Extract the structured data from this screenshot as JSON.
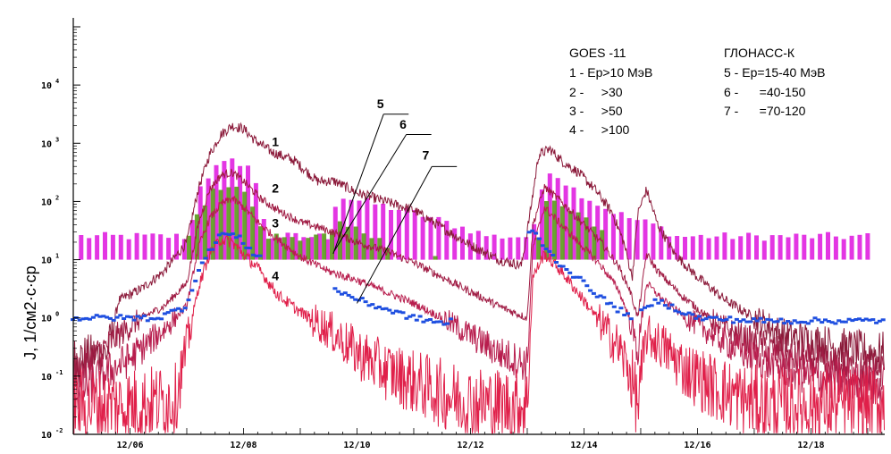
{
  "chart_data": {
    "type": "line",
    "title": "",
    "ylabel": "J, 1/см2·с·ср",
    "xlabel": "",
    "yscale": "log",
    "ylim_exp": [
      -2,
      5
    ],
    "xlim": [
      5.0,
      19.3
    ],
    "y_tick_exponents": [
      -2,
      -1,
      0,
      1,
      2,
      3,
      4
    ],
    "y_tick_base": "10",
    "x_ticks": [
      {
        "value": 6,
        "label": "12/06"
      },
      {
        "value": 8,
        "label": "12/08"
      },
      {
        "value": 10,
        "label": "12/10"
      },
      {
        "value": 12,
        "label": "12/12"
      },
      {
        "value": 14,
        "label": "12/14"
      },
      {
        "value": 16,
        "label": "12/16"
      },
      {
        "value": 18,
        "label": "12/18"
      }
    ],
    "legend": {
      "goes_title": "GOES -11",
      "goes_entries": [
        "1 - Ep>10 МэВ",
        "2 -     >30",
        "3 -     >50",
        "4 -     >100"
      ],
      "glonass_title": "ГЛОНАСС-К",
      "glonass_entries": [
        "5 - Ep=15-40 МэВ",
        "6 -      =40-150",
        "7 -      =70-120"
      ]
    },
    "curve_labels": [
      {
        "text": "1",
        "x": 8.5,
        "y": 2.95
      },
      {
        "text": "2",
        "x": 8.5,
        "y": 2.15
      },
      {
        "text": "3",
        "x": 8.5,
        "y": 1.55
      },
      {
        "text": "4",
        "x": 8.5,
        "y": 0.65
      },
      {
        "text": "5",
        "x": 10.35,
        "y": 3.6
      },
      {
        "text": "6",
        "x": 10.75,
        "y": 3.25
      },
      {
        "text": "7",
        "x": 11.15,
        "y": 2.72
      }
    ],
    "callouts": [
      {
        "label": "5",
        "from": [
          10.5,
          3.5
        ],
        "to": [
          9.58,
          1.1
        ]
      },
      {
        "label": "6",
        "from": [
          10.9,
          3.15
        ],
        "to": [
          9.6,
          1.15
        ]
      },
      {
        "label": "7",
        "from": [
          11.35,
          2.6
        ],
        "to": [
          10.0,
          0.25
        ]
      }
    ],
    "series": [
      {
        "name": "1",
        "color": "#8b1a3a",
        "noise": 0.25,
        "floor": -0.3,
        "x": [
          5.0,
          5.6,
          5.8,
          6.2,
          6.6,
          7.0,
          7.2,
          7.4,
          7.6,
          7.8,
          8.0,
          8.2,
          8.5,
          8.9,
          9.3,
          9.6,
          10.0,
          10.5,
          11.0,
          11.5,
          12.0,
          12.5,
          12.9,
          13.05,
          13.2,
          13.4,
          13.6,
          13.9,
          14.2,
          14.5,
          14.7,
          14.85,
          14.95,
          15.1,
          15.3,
          15.6,
          16.0,
          16.5,
          17.0,
          17.5,
          18.0,
          18.5,
          19.0,
          19.3
        ],
        "y": [
          -0.7,
          -0.6,
          0.3,
          0.5,
          0.8,
          1.3,
          2.2,
          2.8,
          3.15,
          3.3,
          3.25,
          3.05,
          2.85,
          2.7,
          2.35,
          2.35,
          2.15,
          2.0,
          1.85,
          1.55,
          1.25,
          1.0,
          0.9,
          1.8,
          2.8,
          2.9,
          2.7,
          2.5,
          2.2,
          1.8,
          1.3,
          0.7,
          1.8,
          2.2,
          1.6,
          1.1,
          0.7,
          0.3,
          0.0,
          -0.3,
          -0.4,
          -0.5,
          -0.6,
          -0.6
        ]
      },
      {
        "name": "2",
        "color": "#a01c44",
        "noise": 0.2,
        "floor": -0.6,
        "x": [
          5.0,
          5.8,
          6.2,
          6.6,
          7.0,
          7.2,
          7.4,
          7.6,
          7.8,
          8.0,
          8.3,
          8.6,
          9.0,
          9.5,
          10.0,
          10.5,
          11.0,
          11.5,
          12.0,
          12.5,
          13.0,
          13.1,
          13.3,
          13.6,
          14.0,
          14.3,
          14.6,
          14.8,
          14.95,
          15.1,
          15.3,
          15.7,
          16.2,
          16.7,
          17.2,
          17.7,
          18.2,
          18.8,
          19.3
        ],
        "y": [
          -1.0,
          -0.3,
          0.0,
          0.2,
          0.6,
          1.6,
          2.2,
          2.45,
          2.5,
          2.35,
          2.05,
          1.85,
          1.65,
          1.5,
          1.3,
          1.15,
          0.95,
          0.7,
          0.45,
          0.2,
          0.0,
          1.6,
          2.25,
          2.0,
          1.6,
          1.3,
          0.9,
          0.5,
          0.0,
          1.1,
          0.8,
          0.4,
          0.0,
          -0.3,
          -0.5,
          -0.7,
          -0.8,
          -0.9,
          -0.9
        ]
      },
      {
        "name": "3",
        "color": "#b81e4e",
        "noise": 0.2,
        "floor": -1.0,
        "x": [
          5.0,
          6.0,
          6.6,
          7.0,
          7.2,
          7.4,
          7.6,
          7.8,
          8.0,
          8.3,
          8.6,
          9.0,
          9.5,
          10.0,
          10.5,
          11.0,
          11.5,
          12.0,
          12.5,
          13.0,
          13.1,
          13.3,
          13.6,
          14.0,
          14.3,
          14.6,
          14.8,
          14.95,
          15.1,
          15.4,
          15.8,
          16.3,
          16.8,
          17.3,
          18.0,
          18.8,
          19.3
        ],
        "y": [
          -1.3,
          -0.7,
          -0.2,
          0.2,
          1.2,
          1.7,
          1.95,
          2.05,
          1.9,
          1.6,
          1.35,
          1.05,
          0.8,
          0.65,
          0.45,
          0.25,
          0.0,
          -0.3,
          -0.6,
          -0.8,
          1.2,
          1.9,
          1.6,
          1.2,
          0.9,
          0.5,
          0.0,
          -0.6,
          0.6,
          0.3,
          0.0,
          -0.3,
          -0.6,
          -0.8,
          -1.0,
          -1.1,
          -1.2
        ]
      },
      {
        "name": "4",
        "color": "#e0204a",
        "noise": 0.3,
        "floor": -1.6,
        "x": [
          5.0,
          6.0,
          6.8,
          7.0,
          7.2,
          7.4,
          7.6,
          7.8,
          8.0,
          8.3,
          8.6,
          9.0,
          9.5,
          10.0,
          10.5,
          11.0,
          11.5,
          12.0,
          12.5,
          13.0,
          13.1,
          13.3,
          13.6,
          14.0,
          14.3,
          14.6,
          14.8,
          14.95,
          15.1,
          15.4,
          15.8,
          16.3,
          16.8,
          17.3,
          18.0,
          18.8,
          19.3
        ],
        "y": [
          -1.5,
          -1.5,
          -1.4,
          -0.5,
          0.5,
          1.1,
          1.35,
          1.3,
          1.1,
          0.8,
          0.4,
          0.1,
          -0.2,
          -0.6,
          -0.9,
          -1.1,
          -1.3,
          -1.45,
          -1.5,
          -1.5,
          0.7,
          1.1,
          0.8,
          0.3,
          -0.1,
          -0.5,
          -0.9,
          -1.5,
          -0.3,
          -0.5,
          -0.9,
          -1.2,
          -1.4,
          -1.5,
          -1.5,
          -1.5,
          -1.5
        ]
      },
      {
        "name": "7",
        "color": "#1f4fe0",
        "style": "dots",
        "noise": 0.05,
        "x": [
          5.0,
          6.5,
          7.0,
          7.2,
          7.6,
          7.9,
          8.2,
          9.7,
          10.2,
          11.0,
          11.6,
          13.1,
          13.5,
          14.0,
          14.5,
          14.9,
          15.3,
          16.0,
          17.0,
          19.3
        ],
        "y": [
          0.0,
          0.0,
          0.2,
          0.8,
          1.45,
          1.4,
          1.1,
          0.45,
          0.25,
          0.0,
          -0.1,
          1.5,
          1.0,
          0.6,
          0.2,
          0.0,
          0.3,
          0.0,
          -0.05,
          -0.05
        ]
      }
    ],
    "bar_series": [
      {
        "name": "5",
        "color": "#e020e0",
        "base": 1.0,
        "x_start": 5.1,
        "x_end": 19.0,
        "step": 0.14,
        "envelope_x": [
          5.0,
          7.0,
          7.2,
          7.5,
          7.8,
          8.1,
          8.4,
          9.5,
          9.6,
          11.0,
          12.0,
          12.3,
          13.05,
          13.3,
          13.8,
          14.3,
          14.8,
          15.2,
          15.6,
          16.5,
          19.3
        ],
        "envelope_y": [
          1.4,
          1.4,
          2.3,
          2.6,
          2.7,
          2.6,
          1.4,
          1.4,
          2.1,
          1.8,
          1.5,
          1.4,
          1.4,
          2.6,
          2.2,
          1.9,
          1.7,
          1.6,
          1.4,
          1.4,
          1.4
        ]
      },
      {
        "name": "6",
        "color": "#5a9a1a",
        "base": 1.0,
        "x_start": 7.0,
        "x_end": 14.4,
        "step": 0.14,
        "envelope_x": [
          7.0,
          7.2,
          7.5,
          7.8,
          8.1,
          8.3,
          9.5,
          9.6,
          10.4,
          10.6,
          13.05,
          13.3,
          13.8,
          14.3,
          14.4
        ],
        "envelope_y": [
          1.4,
          1.9,
          2.25,
          2.3,
          2.0,
          1.4,
          1.4,
          1.6,
          1.4,
          1.0,
          1.0,
          2.0,
          1.8,
          1.5,
          1.0
        ]
      }
    ]
  }
}
